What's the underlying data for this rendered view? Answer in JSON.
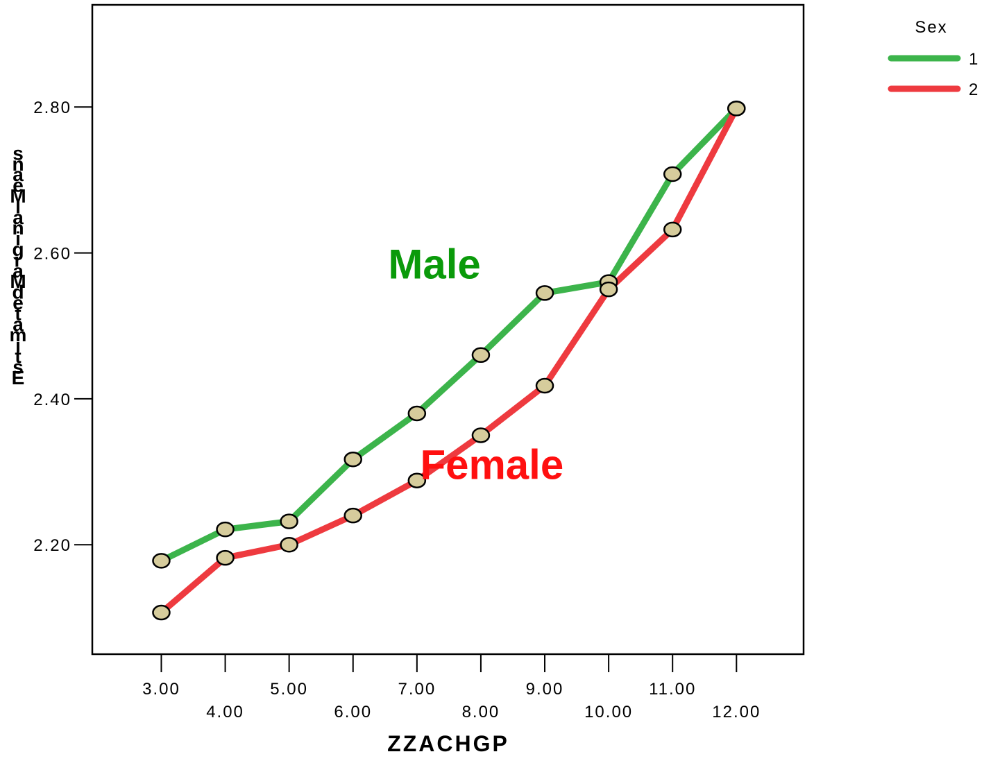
{
  "chart_data": {
    "type": "line",
    "xlabel": "ZZACHGP",
    "ylabel": "Estimated Marginal Means",
    "x": [
      3,
      4,
      5,
      6,
      7,
      8,
      9,
      10,
      11,
      12
    ],
    "x_tick_labels": [
      "3.00",
      "4.00",
      "5.00",
      "6.00",
      "7.00",
      "8.00",
      "9.00",
      "10.00",
      "11.00",
      "12.00"
    ],
    "y_ticks": [
      2.2,
      2.4,
      2.6,
      2.8
    ],
    "y_tick_labels": [
      "2.20",
      "2.40",
      "2.60",
      "2.80"
    ],
    "xlim": [
      1.92,
      13.05
    ],
    "ylim": [
      2.05,
      2.94
    ],
    "legend_title": "Sex",
    "legend_position": "top-right",
    "grid": false,
    "series": [
      {
        "name": "1",
        "color": "#3cb44b",
        "values": [
          2.178,
          2.221,
          2.232,
          2.317,
          2.38,
          2.46,
          2.545,
          2.56,
          2.708,
          2.798
        ]
      },
      {
        "name": "2",
        "color": "#ee3a3f",
        "values": [
          2.107,
          2.182,
          2.2,
          2.24,
          2.288,
          2.35,
          2.418,
          2.55,
          2.632,
          2.798
        ]
      }
    ],
    "marker_color": "#d6cc9c",
    "annotations": [
      {
        "text": "Male",
        "color": "#0a9a0a",
        "x": 6.55,
        "y": 2.565
      },
      {
        "text": "Female",
        "color": "#ff1010",
        "x": 7.05,
        "y": 2.29
      }
    ]
  }
}
